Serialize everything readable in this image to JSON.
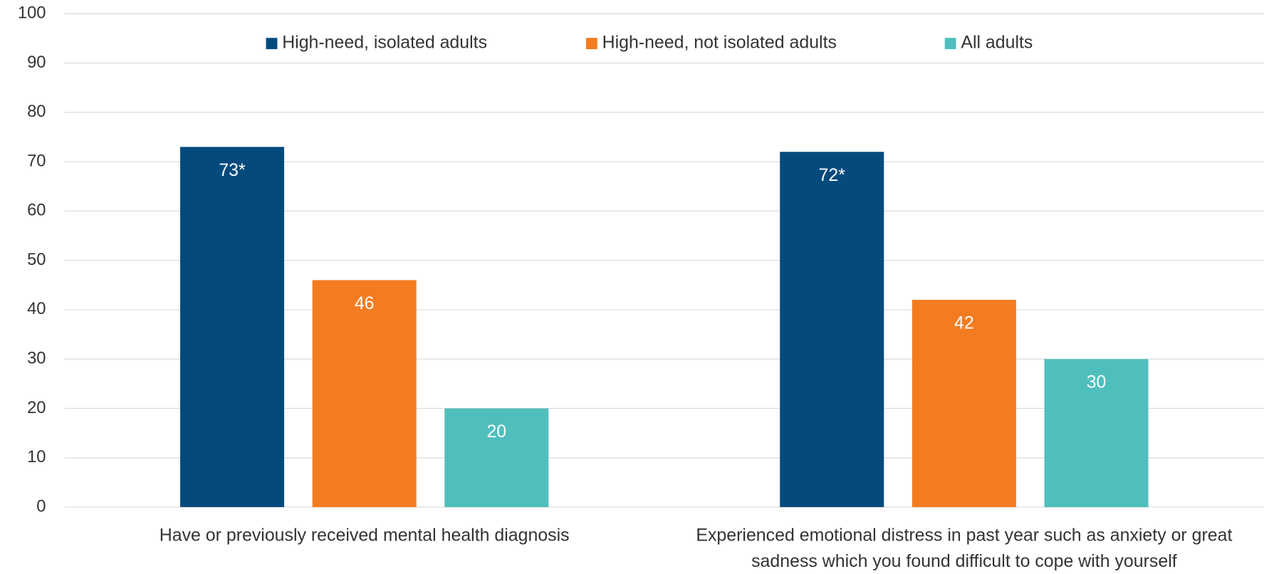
{
  "chart_data": {
    "type": "bar",
    "categories": [
      "Have or previously received mental health diagnosis",
      "Experienced emotional distress in past year such as anxiety or great sadness which you found difficult to cope with yourself"
    ],
    "series": [
      {
        "name": "High-need, isolated adults",
        "color": "#054a7d",
        "values": [
          73,
          72
        ],
        "value_labels": [
          "73*",
          "72*"
        ]
      },
      {
        "name": "High-need, not isolated adults",
        "color": "#f47c20",
        "values": [
          46,
          42
        ]
      },
      {
        "name": "All adults",
        "color": "#4fbfbd",
        "values": [
          20,
          30
        ]
      }
    ],
    "ylim": [
      0,
      100
    ],
    "yticks": [
      0,
      10,
      20,
      30,
      40,
      50,
      60,
      70,
      80,
      90,
      100
    ],
    "grid": true,
    "legend": "top"
  }
}
